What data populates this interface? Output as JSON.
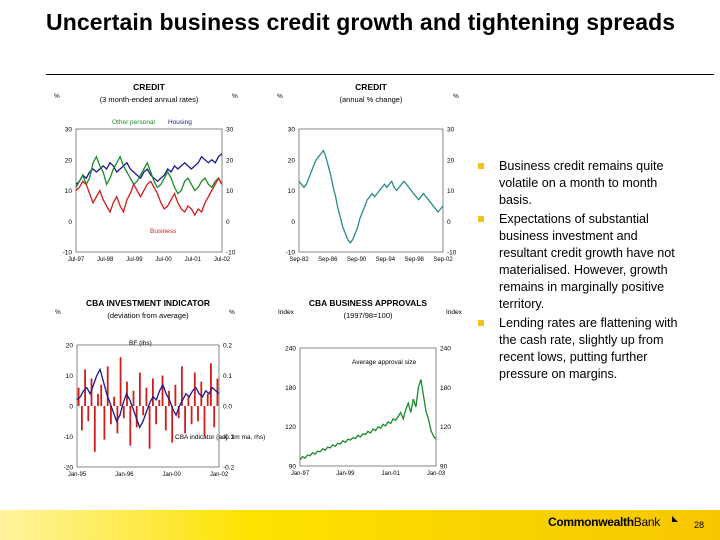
{
  "slide": {
    "title": "Uncertain business credit growth and tightening spreads",
    "bullets": [
      "Business credit remains quite volatile on a month to month basis.",
      "Expectations of substantial business investment and resultant credit growth have not materialised. However, growth remains in marginally positive territory.",
      "Lending rates are flattening with the cash rate, slightly up from recent lows, putting further pressure on margins."
    ],
    "footer": {
      "logo_bold": "Commonwealth",
      "logo_thin": "Bank",
      "page": "28"
    },
    "colors": {
      "footer": "#fde200",
      "bullet": "#f0c419",
      "green": "#1a8a2a",
      "navy": "#1a1a8c",
      "red": "#d21c1c",
      "teal": "#2a8a8a"
    }
  },
  "chart_data": [
    {
      "type": "line",
      "title": "CREDIT",
      "subtitle": "(3 month-ended annual rates)",
      "ylabel_left": "%",
      "ylabel_right": "%",
      "ylim": [
        -10,
        30
      ],
      "yticks": [
        "30",
        "20",
        "10",
        "0",
        "-10"
      ],
      "xticks": [
        "Jul-97",
        "Jul-98",
        "Jul-99",
        "Jul-00",
        "Jul-01",
        "Jul-02"
      ],
      "annotations": [
        "Other personal",
        "Housing",
        "Business"
      ],
      "series": [
        {
          "name": "Housing",
          "color": "#1a1a8c",
          "values": [
            12,
            13,
            15,
            14,
            16,
            17,
            16,
            17,
            18,
            17,
            19,
            18,
            16,
            17,
            18,
            19,
            17,
            16,
            15,
            14,
            16,
            17,
            15,
            14,
            13,
            14,
            15,
            17,
            16,
            18,
            17,
            18,
            19,
            18,
            17,
            18,
            19,
            21,
            20,
            19,
            20,
            19,
            21,
            22
          ]
        },
        {
          "name": "Other personal",
          "color": "#1a8a2a",
          "values": [
            11,
            13,
            15,
            12,
            14,
            19,
            21,
            18,
            16,
            12,
            14,
            17,
            19,
            21,
            18,
            16,
            14,
            12,
            13,
            15,
            17,
            19,
            16,
            13,
            11,
            12,
            14,
            16,
            14,
            11,
            9,
            10,
            13,
            14,
            12,
            10,
            11,
            13,
            14,
            12,
            11,
            13,
            14,
            12
          ]
        },
        {
          "name": "Business",
          "color": "#d21c1c",
          "values": [
            10,
            11,
            13,
            12,
            9,
            6,
            8,
            10,
            7,
            5,
            3,
            6,
            8,
            5,
            3,
            7,
            9,
            12,
            10,
            8,
            10,
            12,
            13,
            11,
            9,
            6,
            4,
            5,
            7,
            9,
            6,
            4,
            3,
            5,
            4,
            2,
            4,
            3,
            6,
            8,
            10,
            12,
            14,
            12
          ]
        }
      ]
    },
    {
      "type": "line",
      "title": "CREDIT",
      "subtitle": "(annual % change)",
      "ylabel_left": "%",
      "ylabel_right": "%",
      "ylim": [
        -10,
        30
      ],
      "yticks": [
        "30",
        "20",
        "10",
        "0",
        "-10"
      ],
      "xticks": [
        "Sep-82",
        "Sep-86",
        "Sep-90",
        "Sep-94",
        "Sep-98",
        "Sep-02"
      ],
      "series": [
        {
          "name": "",
          "color": "#2a8a8a",
          "values": [
            13,
            12,
            11,
            12,
            14,
            16,
            18,
            20,
            21,
            22,
            23,
            21,
            18,
            15,
            11,
            8,
            4,
            1,
            -2,
            -4,
            -6,
            -7,
            -6,
            -4,
            -2,
            1,
            3,
            5,
            7,
            8,
            9,
            8,
            9,
            10,
            11,
            12,
            11,
            12,
            13,
            11,
            10,
            11,
            12,
            13,
            12,
            11,
            10,
            9,
            8,
            7,
            8,
            9,
            8,
            7,
            6,
            5,
            4,
            3,
            4,
            5
          ]
        }
      ]
    },
    {
      "type": "bar",
      "title": "CBA INVESTMENT INDICATOR",
      "subtitle": "(deviation from average)",
      "ylabel_left": "%",
      "ylabel_right": "%",
      "ylim_left": [
        -20,
        20
      ],
      "ylim_right": [
        -0.2,
        0.2
      ],
      "yticks_left": [
        "20",
        "10",
        "0",
        "-10",
        "-20"
      ],
      "yticks_right": [
        "0.2",
        "0.1",
        "0.0",
        "-0.1",
        "-0.2"
      ],
      "xticks": [
        "Jan-95",
        "Jan-96",
        "Jan-00",
        "Jan-02"
      ],
      "annotations": [
        "BF (lhs)",
        "CBA indicator (adj. 3m ma, rhs)"
      ],
      "series": [
        {
          "name": "BF (lhs)",
          "color": "#d21c1c",
          "values": [
            6,
            -8,
            12,
            -5,
            9,
            -15,
            4,
            7,
            -11,
            13,
            -6,
            3,
            -9,
            16,
            -4,
            8,
            -13,
            5,
            -7,
            11,
            -3,
            6,
            -14,
            9,
            -6,
            2,
            10,
            -8,
            5,
            -12,
            7,
            -4,
            13,
            -9,
            3,
            -6,
            11,
            -5,
            8,
            -10,
            4,
            14,
            -7,
            9
          ]
        },
        {
          "name": "CBA indicator (adj. 3m ma, rhs)",
          "color": "#1a1a8c",
          "values": [
            0.02,
            0.03,
            0.05,
            0.06,
            0.04,
            0.07,
            0.1,
            0.12,
            0.08,
            0.04,
            0.01,
            -0.02,
            -0.05,
            -0.03,
            0.01,
            0.04,
            0.02,
            -0.01,
            -0.04,
            -0.07,
            -0.05,
            -0.02,
            0.01,
            0.03,
            0.02,
            0.05,
            0.07,
            0.04,
            0.02,
            -0.01,
            -0.03,
            0.0,
            0.02,
            0.04,
            0.03,
            0.05,
            0.06,
            0.04,
            0.03,
            0.05,
            0.04,
            0.06,
            0.05,
            0.04
          ]
        }
      ]
    },
    {
      "type": "line",
      "title": "CBA BUSINESS APPROVALS",
      "subtitle": "(1997/98=100)",
      "ylabel_left": "Index",
      "ylabel_right": "Index",
      "ylim": [
        90,
        240
      ],
      "yticks": [
        "240",
        "180",
        "120",
        "90"
      ],
      "xticks": [
        "Jan-97",
        "Jan-99",
        "Jan-01",
        "Jan-03"
      ],
      "annotations": [
        "Average approval size"
      ],
      "series": [
        {
          "name": "Average approval size",
          "color": "#1a8a2a",
          "values": [
            98,
            102,
            100,
            104,
            103,
            107,
            105,
            109,
            108,
            112,
            110,
            114,
            113,
            117,
            115,
            119,
            118,
            122,
            120,
            124,
            123,
            126,
            125,
            129,
            127,
            131,
            130,
            134,
            132,
            137,
            135,
            140,
            138,
            143,
            141,
            146,
            144,
            150,
            148,
            153,
            158,
            150,
            162,
            170,
            158,
            175,
            165,
            190,
            200,
            180,
            160,
            150,
            135,
            128,
            124
          ]
        }
      ]
    }
  ]
}
